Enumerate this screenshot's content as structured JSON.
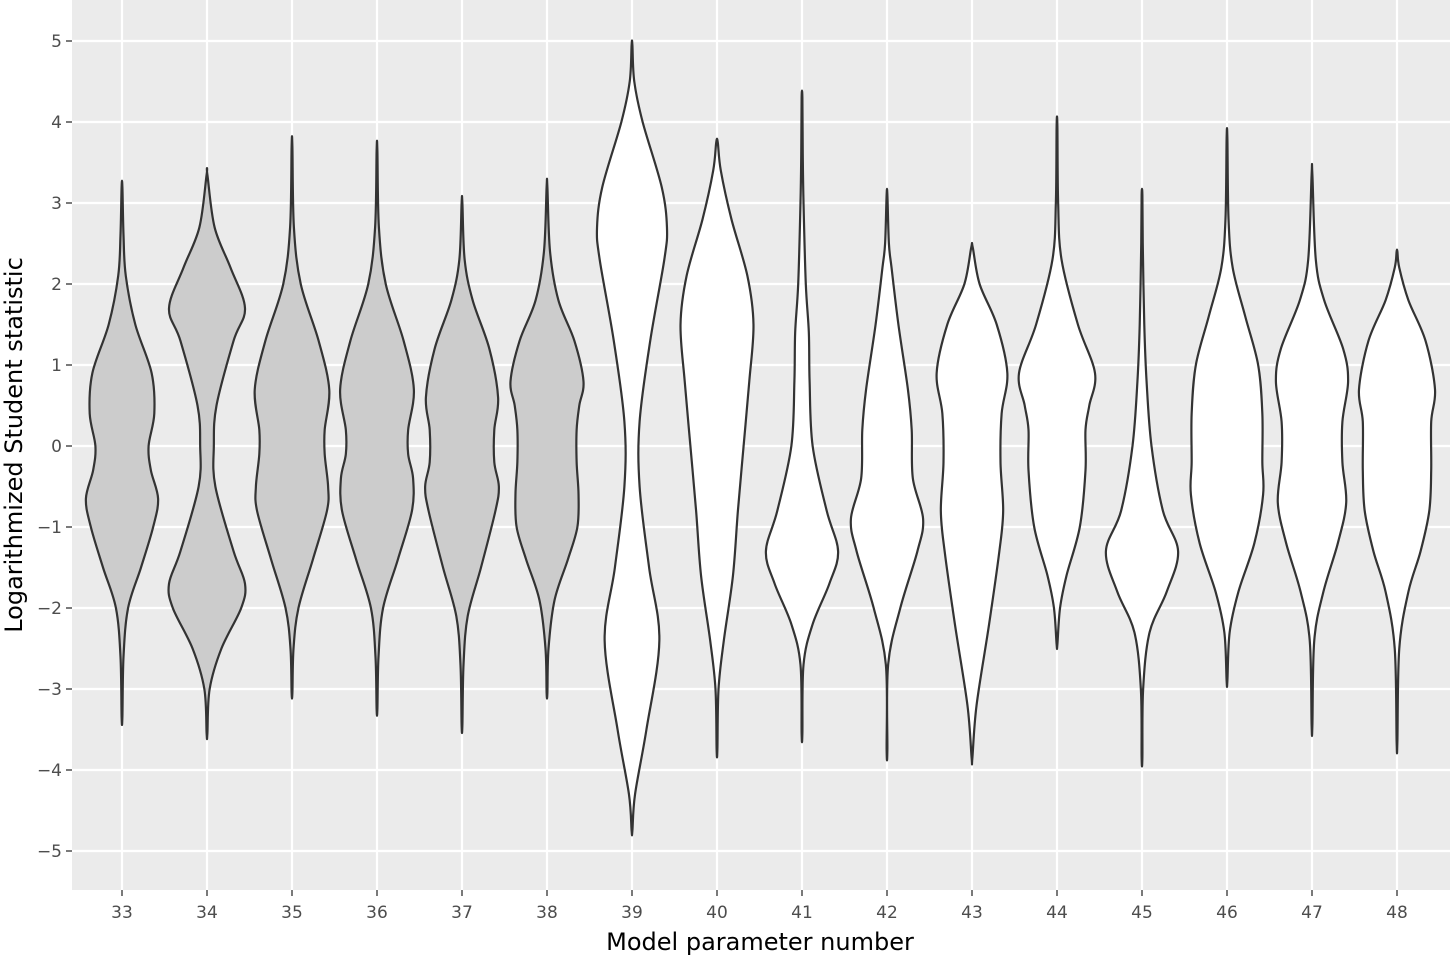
{
  "chart_data": {
    "type": "violin",
    "xlabel": "Model parameter number",
    "ylabel": "Logarithmized Student statistic",
    "ylim": [
      -5.5,
      5.5
    ],
    "yticks": [
      -5,
      -4,
      -3,
      -2,
      -1,
      0,
      1,
      2,
      3,
      4,
      5
    ],
    "categories": [
      "33",
      "34",
      "35",
      "36",
      "37",
      "38",
      "39",
      "40",
      "41",
      "42",
      "43",
      "44",
      "45",
      "46",
      "47",
      "48"
    ],
    "grid": true,
    "legend": "none",
    "colors": {
      "panel_background": "#ebebeb",
      "gridline": "#ffffff",
      "outline": "#333333",
      "fill_gray": "#cccccc",
      "fill_white": "#ffffff"
    },
    "violins": [
      {
        "category": "33",
        "fill": "gray",
        "min": -3.35,
        "max": 3.2,
        "profile": [
          [
            -3.35,
            0.01
          ],
          [
            -2.6,
            0.04
          ],
          [
            -2.0,
            0.16
          ],
          [
            -1.5,
            0.5
          ],
          [
            -1.0,
            0.82
          ],
          [
            -0.65,
            0.95
          ],
          [
            -0.3,
            0.76
          ],
          [
            0.0,
            0.7
          ],
          [
            0.4,
            0.85
          ],
          [
            0.9,
            0.78
          ],
          [
            1.5,
            0.35
          ],
          [
            2.1,
            0.1
          ],
          [
            2.6,
            0.04
          ],
          [
            3.2,
            0.01
          ]
        ]
      },
      {
        "category": "34",
        "fill": "gray",
        "min": -3.55,
        "max": 3.35,
        "profile": [
          [
            -3.55,
            0.01
          ],
          [
            -3.0,
            0.07
          ],
          [
            -2.5,
            0.38
          ],
          [
            -2.0,
            0.9
          ],
          [
            -1.7,
            1.0
          ],
          [
            -1.3,
            0.7
          ],
          [
            -0.5,
            0.22
          ],
          [
            0.0,
            0.18
          ],
          [
            0.5,
            0.25
          ],
          [
            1.3,
            0.7
          ],
          [
            1.7,
            1.0
          ],
          [
            2.2,
            0.62
          ],
          [
            2.7,
            0.2
          ],
          [
            3.35,
            0.01
          ]
        ]
      },
      {
        "category": "35",
        "fill": "gray",
        "min": -3.05,
        "max": 3.7,
        "profile": [
          [
            -3.05,
            0.01
          ],
          [
            -2.5,
            0.04
          ],
          [
            -2.0,
            0.17
          ],
          [
            -1.4,
            0.55
          ],
          [
            -0.8,
            0.92
          ],
          [
            -0.5,
            0.95
          ],
          [
            -0.1,
            0.86
          ],
          [
            0.2,
            0.86
          ],
          [
            0.7,
            0.98
          ],
          [
            1.3,
            0.7
          ],
          [
            2.0,
            0.23
          ],
          [
            2.7,
            0.05
          ],
          [
            3.7,
            0.01
          ]
        ]
      },
      {
        "category": "36",
        "fill": "gray",
        "min": -3.25,
        "max": 3.65,
        "profile": [
          [
            -3.25,
            0.01
          ],
          [
            -2.6,
            0.04
          ],
          [
            -2.0,
            0.16
          ],
          [
            -1.4,
            0.55
          ],
          [
            -0.8,
            0.92
          ],
          [
            -0.4,
            0.95
          ],
          [
            -0.1,
            0.82
          ],
          [
            0.2,
            0.82
          ],
          [
            0.7,
            0.97
          ],
          [
            1.3,
            0.7
          ],
          [
            2.0,
            0.23
          ],
          [
            2.7,
            0.05
          ],
          [
            3.65,
            0.01
          ]
        ]
      },
      {
        "category": "37",
        "fill": "gray",
        "min": -3.45,
        "max": 3.0,
        "profile": [
          [
            -3.45,
            0.01
          ],
          [
            -2.7,
            0.04
          ],
          [
            -2.1,
            0.15
          ],
          [
            -1.5,
            0.5
          ],
          [
            -0.8,
            0.88
          ],
          [
            -0.5,
            0.97
          ],
          [
            -0.2,
            0.85
          ],
          [
            0.2,
            0.85
          ],
          [
            0.6,
            0.95
          ],
          [
            1.2,
            0.72
          ],
          [
            1.8,
            0.28
          ],
          [
            2.3,
            0.07
          ],
          [
            3.0,
            0.01
          ]
        ]
      },
      {
        "category": "38",
        "fill": "gray",
        "min": -3.05,
        "max": 3.2,
        "profile": [
          [
            -3.05,
            0.01
          ],
          [
            -2.5,
            0.04
          ],
          [
            -1.9,
            0.2
          ],
          [
            -1.4,
            0.55
          ],
          [
            -1.0,
            0.8
          ],
          [
            -0.6,
            0.83
          ],
          [
            -0.2,
            0.78
          ],
          [
            0.2,
            0.78
          ],
          [
            0.5,
            0.85
          ],
          [
            0.8,
            0.96
          ],
          [
            1.3,
            0.72
          ],
          [
            1.8,
            0.3
          ],
          [
            2.4,
            0.08
          ],
          [
            3.2,
            0.01
          ]
        ]
      },
      {
        "category": "39",
        "fill": "white",
        "min": -4.75,
        "max": 4.95,
        "profile": [
          [
            -4.75,
            0.01
          ],
          [
            -4.3,
            0.08
          ],
          [
            -3.5,
            0.38
          ],
          [
            -2.4,
            0.72
          ],
          [
            -1.5,
            0.45
          ],
          [
            -0.5,
            0.2
          ],
          [
            0.3,
            0.2
          ],
          [
            1.3,
            0.48
          ],
          [
            2.3,
            0.85
          ],
          [
            2.7,
            0.92
          ],
          [
            3.2,
            0.78
          ],
          [
            4.0,
            0.28
          ],
          [
            4.5,
            0.06
          ],
          [
            4.95,
            0.01
          ]
        ]
      },
      {
        "category": "40",
        "fill": "white",
        "min": -3.75,
        "max": 3.75,
        "profile": [
          [
            -3.75,
            0.01
          ],
          [
            -3.0,
            0.04
          ],
          [
            -2.4,
            0.18
          ],
          [
            -1.6,
            0.42
          ],
          [
            -0.8,
            0.55
          ],
          [
            0.0,
            0.7
          ],
          [
            0.8,
            0.85
          ],
          [
            1.5,
            0.96
          ],
          [
            2.1,
            0.8
          ],
          [
            2.8,
            0.38
          ],
          [
            3.4,
            0.1
          ],
          [
            3.75,
            0.02
          ]
        ]
      },
      {
        "category": "41",
        "fill": "white",
        "min": -3.55,
        "max": 4.3,
        "profile": [
          [
            -3.55,
            0.01
          ],
          [
            -2.7,
            0.04
          ],
          [
            -2.2,
            0.28
          ],
          [
            -1.7,
            0.72
          ],
          [
            -1.3,
            0.95
          ],
          [
            -0.8,
            0.65
          ],
          [
            0.0,
            0.28
          ],
          [
            0.8,
            0.2
          ],
          [
            1.4,
            0.18
          ],
          [
            2.0,
            0.1
          ],
          [
            3.0,
            0.04
          ],
          [
            3.6,
            0.02
          ],
          [
            4.3,
            0.01
          ]
        ]
      },
      {
        "category": "42",
        "fill": "white",
        "min": -3.75,
        "max": 3.1,
        "profile": [
          [
            -3.75,
            0.01
          ],
          [
            -2.7,
            0.03
          ],
          [
            -2.0,
            0.35
          ],
          [
            -1.3,
            0.8
          ],
          [
            -0.9,
            0.95
          ],
          [
            -0.4,
            0.68
          ],
          [
            0.2,
            0.65
          ],
          [
            0.7,
            0.55
          ],
          [
            1.5,
            0.3
          ],
          [
            2.2,
            0.12
          ],
          [
            2.5,
            0.05
          ],
          [
            3.1,
            0.01
          ]
        ]
      },
      {
        "category": "43",
        "fill": "white",
        "min": -3.85,
        "max": 2.45,
        "profile": [
          [
            -3.85,
            0.01
          ],
          [
            -3.2,
            0.12
          ],
          [
            -2.2,
            0.45
          ],
          [
            -1.3,
            0.72
          ],
          [
            -0.8,
            0.82
          ],
          [
            -0.2,
            0.75
          ],
          [
            0.4,
            0.78
          ],
          [
            0.9,
            0.93
          ],
          [
            1.5,
            0.65
          ],
          [
            2.0,
            0.2
          ],
          [
            2.45,
            0.02
          ]
        ]
      },
      {
        "category": "44",
        "fill": "white",
        "min": -2.45,
        "max": 3.95,
        "profile": [
          [
            -2.45,
            0.01
          ],
          [
            -2.0,
            0.08
          ],
          [
            -1.6,
            0.25
          ],
          [
            -1.0,
            0.6
          ],
          [
            -0.3,
            0.75
          ],
          [
            0.2,
            0.75
          ],
          [
            0.5,
            0.85
          ],
          [
            0.9,
            1.0
          ],
          [
            1.5,
            0.55
          ],
          [
            2.3,
            0.12
          ],
          [
            3.0,
            0.03
          ],
          [
            3.95,
            0.01
          ]
        ]
      },
      {
        "category": "45",
        "fill": "white",
        "min": -3.85,
        "max": 3.1,
        "profile": [
          [
            -3.85,
            0.01
          ],
          [
            -3.0,
            0.03
          ],
          [
            -2.3,
            0.2
          ],
          [
            -1.8,
            0.65
          ],
          [
            -1.3,
            0.95
          ],
          [
            -0.8,
            0.55
          ],
          [
            0.0,
            0.25
          ],
          [
            0.8,
            0.12
          ],
          [
            1.5,
            0.06
          ],
          [
            2.5,
            0.02
          ],
          [
            3.1,
            0.01
          ]
        ]
      },
      {
        "category": "46",
        "fill": "white",
        "min": -2.9,
        "max": 3.8,
        "profile": [
          [
            -2.9,
            0.01
          ],
          [
            -2.3,
            0.07
          ],
          [
            -1.8,
            0.3
          ],
          [
            -1.2,
            0.72
          ],
          [
            -0.6,
            0.95
          ],
          [
            -0.2,
            0.93
          ],
          [
            0.4,
            0.93
          ],
          [
            1.0,
            0.82
          ],
          [
            1.6,
            0.48
          ],
          [
            2.2,
            0.15
          ],
          [
            2.8,
            0.04
          ],
          [
            3.8,
            0.01
          ]
        ]
      },
      {
        "category": "47",
        "fill": "white",
        "min": -3.45,
        "max": 3.35,
        "profile": [
          [
            -3.45,
            0.01
          ],
          [
            -2.4,
            0.06
          ],
          [
            -1.8,
            0.3
          ],
          [
            -1.2,
            0.68
          ],
          [
            -0.7,
            0.9
          ],
          [
            -0.2,
            0.8
          ],
          [
            0.3,
            0.8
          ],
          [
            0.8,
            0.95
          ],
          [
            1.2,
            0.82
          ],
          [
            1.8,
            0.32
          ],
          [
            2.3,
            0.1
          ],
          [
            3.35,
            0.01
          ]
        ]
      },
      {
        "category": "48",
        "fill": "white",
        "min": -3.65,
        "max": 2.4,
        "profile": [
          [
            -3.65,
            0.01
          ],
          [
            -2.5,
            0.06
          ],
          [
            -1.8,
            0.3
          ],
          [
            -1.3,
            0.62
          ],
          [
            -0.8,
            0.85
          ],
          [
            -0.3,
            0.9
          ],
          [
            0.3,
            0.9
          ],
          [
            0.7,
            1.0
          ],
          [
            1.3,
            0.75
          ],
          [
            1.8,
            0.3
          ],
          [
            2.2,
            0.06
          ],
          [
            2.4,
            0.01
          ]
        ]
      }
    ]
  }
}
